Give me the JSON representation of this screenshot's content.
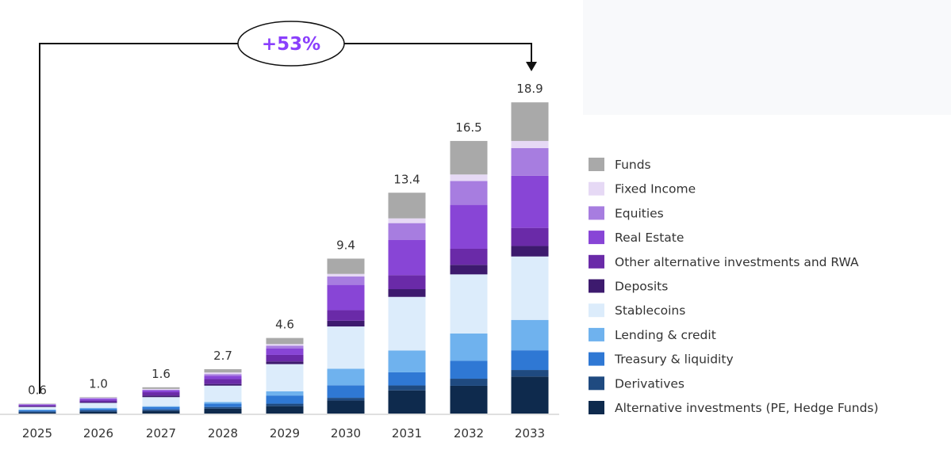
{
  "chart_data": {
    "type": "bar",
    "stacked": true,
    "title": "",
    "xlabel": "",
    "ylabel": "",
    "ylim": [
      0,
      19
    ],
    "grid": false,
    "legend_position": "right",
    "annotation": "+53%",
    "categories": [
      "2025",
      "2026",
      "2027",
      "2028",
      "2029",
      "2030",
      "2031",
      "2032",
      "2033"
    ],
    "totals": [
      "0.6",
      "1.0",
      "1.6",
      "2.7",
      "4.6",
      "9.4",
      "13.4",
      "16.5",
      "18.9"
    ],
    "series": [
      {
        "name": "Alternative investments (PE, Hedge Funds)",
        "color": "#0e2a4d",
        "values": [
          0.05,
          0.1,
          0.15,
          0.3,
          0.45,
          0.8,
          1.41,
          1.69,
          2.25
        ]
      },
      {
        "name": "Derivatives",
        "color": "#1f4a80",
        "values": [
          0.08,
          0.1,
          0.1,
          0.1,
          0.15,
          0.16,
          0.3,
          0.43,
          0.4
        ]
      },
      {
        "name": "Treasury & liquidity",
        "color": "#2f78d4",
        "values": [
          0.07,
          0.1,
          0.15,
          0.2,
          0.5,
          0.76,
          0.8,
          1.09,
          1.2
        ]
      },
      {
        "name": "Lending & credit",
        "color": "#6fb2ee",
        "values": [
          0.05,
          0.05,
          0.05,
          0.1,
          0.25,
          1.01,
          1.33,
          1.66,
          1.85
        ]
      },
      {
        "name": "Stablecoins",
        "color": "#dcecfb",
        "values": [
          0.15,
          0.3,
          0.55,
          1.0,
          1.66,
          2.57,
          3.26,
          3.6,
          3.86
        ]
      },
      {
        "name": "Deposits",
        "color": "#3d1a6e",
        "values": [
          0.03,
          0.05,
          0.1,
          0.1,
          0.16,
          0.35,
          0.47,
          0.58,
          0.64
        ]
      },
      {
        "name": "Other alternative investments and RWA",
        "color": "#6a2aa8",
        "values": [
          0.07,
          0.1,
          0.2,
          0.3,
          0.4,
          0.64,
          0.85,
          0.98,
          1.1
        ]
      },
      {
        "name": "Real Estate",
        "color": "#8845d6",
        "values": [
          0.05,
          0.1,
          0.1,
          0.2,
          0.4,
          1.54,
          2.14,
          2.67,
          3.17
        ]
      },
      {
        "name": "Equities",
        "color": "#a77de0",
        "values": [
          0.03,
          0.05,
          0.05,
          0.1,
          0.16,
          0.51,
          1.03,
          1.45,
          1.69
        ]
      },
      {
        "name": "Fixed Income",
        "color": "#e6d9f5",
        "values": [
          0.01,
          0.02,
          0.05,
          0.1,
          0.1,
          0.16,
          0.29,
          0.4,
          0.43
        ]
      },
      {
        "name": "Funds",
        "color": "#a9a9a9",
        "values": [
          0.01,
          0.03,
          0.1,
          0.2,
          0.37,
          0.93,
          1.56,
          2.04,
          2.35
        ]
      }
    ],
    "colors": {
      "annotation": "#8a3ffc",
      "bracket": "#111111"
    }
  }
}
